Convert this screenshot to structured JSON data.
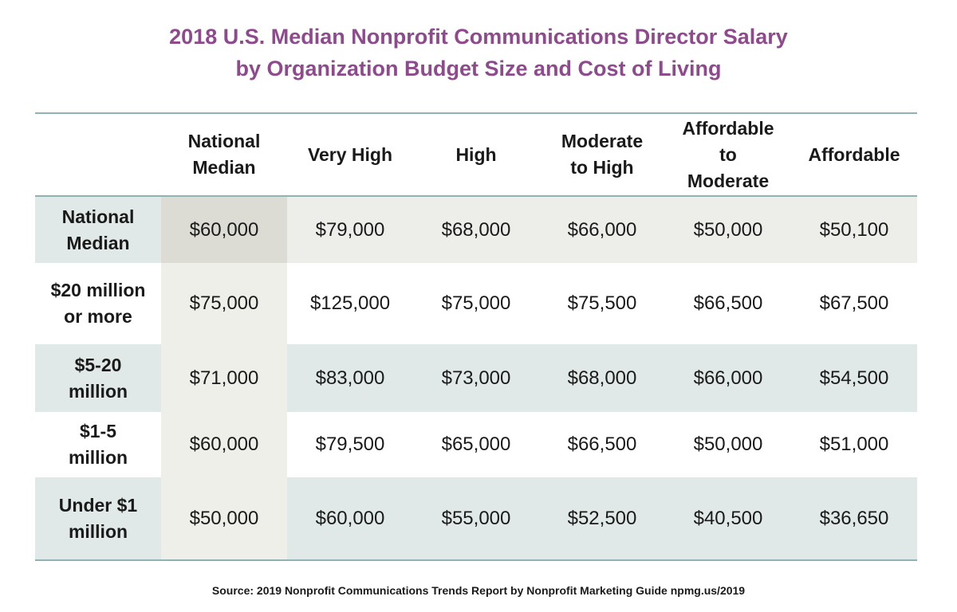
{
  "chart_data": {
    "type": "table",
    "title": [
      "2018 U.S. Median Nonprofit Communications Director Salary",
      "by Organization Budget Size and Cost of Living"
    ],
    "columns": [
      [
        "National",
        "Median"
      ],
      [
        "Very High"
      ],
      [
        "High"
      ],
      [
        "Moderate",
        "to High"
      ],
      [
        "Affordable",
        "to",
        "Moderate"
      ],
      [
        "Affordable"
      ]
    ],
    "rows": [
      {
        "label": [
          "National",
          "Median"
        ],
        "values": [
          "$60,000",
          "$79,000",
          "$68,000",
          "$66,000",
          "$50,000",
          "$50,100"
        ]
      },
      {
        "label": [
          "$20 million",
          "or more"
        ],
        "values": [
          "$75,000",
          "$125,000",
          "$75,000",
          "$75,500",
          "$66,500",
          "$67,500"
        ]
      },
      {
        "label": [
          "$5-20",
          "million"
        ],
        "values": [
          "$71,000",
          "$83,000",
          "$73,000",
          "$68,000",
          "$66,000",
          "$54,500"
        ]
      },
      {
        "label": [
          "$1-5",
          "million"
        ],
        "values": [
          "$60,000",
          "$79,500",
          "$65,000",
          "$66,500",
          "$50,000",
          "$51,000"
        ]
      },
      {
        "label": [
          "Under $1",
          "million"
        ],
        "values": [
          "$50,000",
          "$60,000",
          "$55,000",
          "$52,500",
          "$40,500",
          "$36,650"
        ]
      }
    ],
    "source": "Source: 2019 Nonprofit Communications Trends Report by Nonprofit Marketing Guide   npmg.us/2019"
  },
  "colors": {
    "title": "#8e4a8d",
    "rule": "#8fb3b0",
    "shaded_row": "#e0e9e7",
    "first_row": "#ededea",
    "national_median_column": "#efefe9",
    "highlight_cell": "#dcdcd5"
  }
}
